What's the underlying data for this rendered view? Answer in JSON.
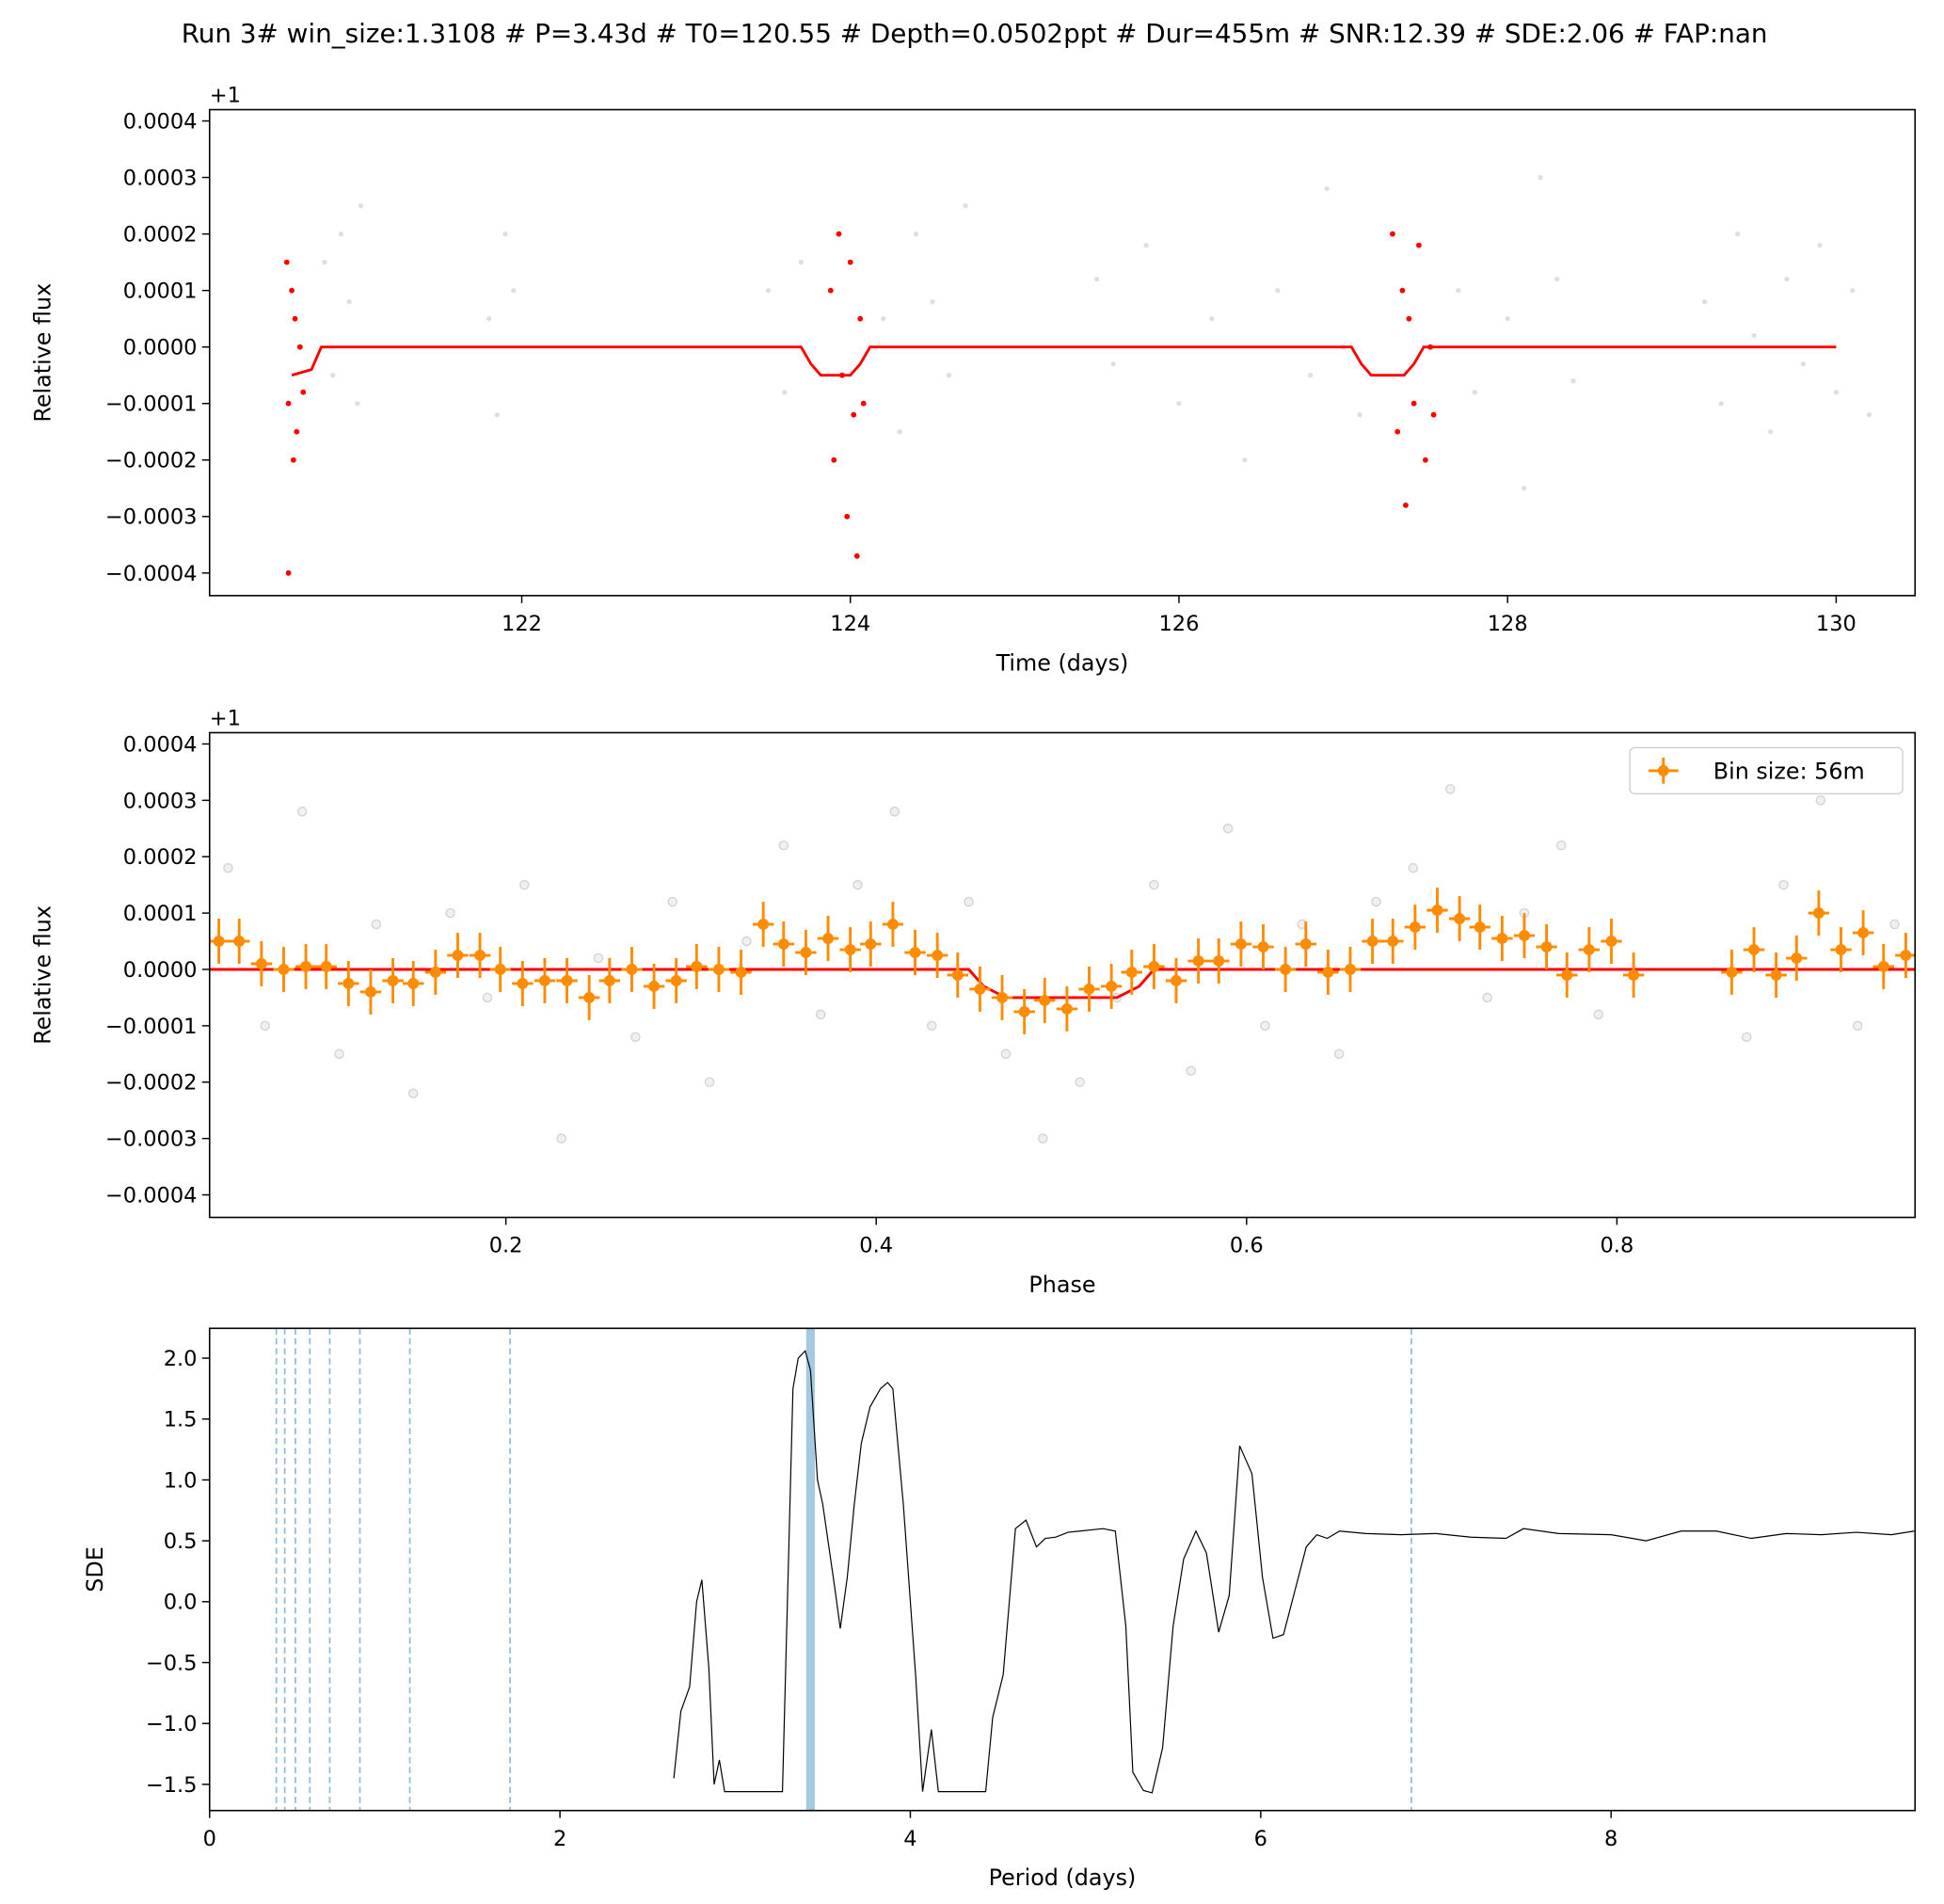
{
  "title": "Run 3# win_size:1.3108 # P=3.43d # T0=120.55 # Depth=0.0502ppt # Dur=455m # SNR:12.39 # SDE:2.06 # FAP:nan",
  "chart_data": [
    {
      "type": "scatter",
      "xlabel": "Time (days)",
      "ylabel": "Relative flux",
      "offset_label": "+1",
      "xlim": [
        120.1,
        130.48
      ],
      "ylim": [
        -0.00044,
        0.00042
      ],
      "xticks": [
        122,
        124,
        126,
        128,
        130
      ],
      "yticks": [
        {
          "value": -0.0004,
          "label": "−0.0004"
        },
        {
          "value": -0.0003,
          "label": "−0.0003"
        },
        {
          "value": -0.0002,
          "label": "−0.0002"
        },
        {
          "value": -0.0001,
          "label": "−0.0001"
        },
        {
          "value": 0,
          "label": "0.0000"
        },
        {
          "value": 0.0001,
          "label": "0.0001"
        },
        {
          "value": 0.0002,
          "label": "0.0002"
        },
        {
          "value": 0.0003,
          "label": "0.0003"
        },
        {
          "value": 0.0004,
          "label": "0.0004"
        }
      ],
      "series": [
        {
          "type": "scatter",
          "color": "#808080",
          "alpha": 0.25,
          "x": [
            120.8,
            120.85,
            120.9,
            120.95,
            121.0,
            121.02,
            121.8,
            121.85,
            121.9,
            121.95,
            123.5,
            123.6,
            123.7,
            124.2,
            124.3,
            124.4,
            124.5,
            124.6,
            124.7,
            125.5,
            125.6,
            125.8,
            126.0,
            126.2,
            126.4,
            126.6,
            126.8,
            126.9,
            127.0,
            127.1,
            127.7,
            127.8,
            128.0,
            128.1,
            128.2,
            128.3,
            128.4,
            129.2,
            129.3,
            129.4,
            129.5,
            129.6,
            129.7,
            129.8,
            129.9,
            130.0,
            130.1,
            130.2
          ],
          "values": [
            0.00015,
            -5e-05,
            0.0002,
            8e-05,
            -0.0001,
            0.00025,
            5e-05,
            -0.00012,
            0.0002,
            0.0001,
            0.0001,
            -8e-05,
            0.00015,
            5e-05,
            -0.00015,
            0.0002,
            8e-05,
            -5e-05,
            0.00025,
            0.00012,
            -3e-05,
            0.00018,
            -0.0001,
            5e-05,
            -0.0002,
            0.0001,
            -5e-05,
            0.00028,
            0,
            -0.00012,
            0.0001,
            -8e-05,
            5e-05,
            -0.00025,
            0.0003,
            0.00012,
            -6e-05,
            8e-05,
            -0.0001,
            0.0002,
            2e-05,
            -0.00015,
            0.00012,
            -3e-05,
            0.00018,
            -8e-05,
            0.0001,
            -0.00012
          ]
        },
        {
          "type": "scatter",
          "color": "#ff0000",
          "alpha": 1,
          "x": [
            120.57,
            120.58,
            120.6,
            120.61,
            120.62,
            120.63,
            120.58,
            120.65,
            120.67,
            123.88,
            123.9,
            123.93,
            123.95,
            123.98,
            124.0,
            124.02,
            124.04,
            124.06,
            124.08,
            127.3,
            127.33,
            127.36,
            127.38,
            127.4,
            127.43,
            127.46,
            127.5,
            127.53,
            127.55
          ],
          "values": [
            0.00015,
            -0.0001,
            0.0001,
            -0.0002,
            5e-05,
            -0.00015,
            -0.0004,
            0,
            -8e-05,
            0.0001,
            -0.0002,
            0.0002,
            -5e-05,
            -0.0003,
            0.00015,
            -0.00012,
            -0.00037,
            5e-05,
            -0.0001,
            0.0002,
            -0.00015,
            0.0001,
            -0.00028,
            5e-05,
            -0.0001,
            0.00018,
            -0.0002,
            0,
            -0.00012
          ]
        },
        {
          "type": "line",
          "color": "#ff0000",
          "x": [
            120.6,
            120.72,
            120.78,
            123.7,
            123.76,
            123.82,
            124.0,
            124.06,
            124.12,
            127.05,
            127.11,
            127.17,
            127.37,
            127.43,
            127.49,
            130.0
          ],
          "values": [
            -5e-05,
            -4e-05,
            0,
            0,
            -3e-05,
            -5e-05,
            -5e-05,
            -3e-05,
            0,
            0,
            -3e-05,
            -5e-05,
            -5e-05,
            -3e-05,
            0,
            0
          ]
        }
      ]
    },
    {
      "type": "scatter",
      "xlabel": "Phase",
      "ylabel": "Relative flux",
      "offset_label": "+1",
      "legend": "upper right",
      "xlim": [
        0.04,
        0.961
      ],
      "ylim": [
        -0.00044,
        0.00042
      ],
      "xticks": [
        0.2,
        0.4,
        0.6,
        0.8
      ],
      "yticks": [
        {
          "value": -0.0004,
          "label": "−0.0004"
        },
        {
          "value": -0.0003,
          "label": "−0.0003"
        },
        {
          "value": -0.0002,
          "label": "−0.0002"
        },
        {
          "value": -0.0001,
          "label": "−0.0001"
        },
        {
          "value": 0,
          "label": "0.0000"
        },
        {
          "value": 0.0001,
          "label": "0.0001"
        },
        {
          "value": 0.0002,
          "label": "0.0002"
        },
        {
          "value": 0.0003,
          "label": "0.0003"
        },
        {
          "value": 0.0004,
          "label": "0.0004"
        }
      ],
      "series": [
        {
          "type": "scatter",
          "color": "#808080",
          "alpha": 0.3,
          "x": [
            0.05,
            0.07,
            0.09,
            0.11,
            0.13,
            0.15,
            0.17,
            0.19,
            0.21,
            0.23,
            0.25,
            0.27,
            0.29,
            0.31,
            0.33,
            0.35,
            0.37,
            0.39,
            0.41,
            0.43,
            0.45,
            0.47,
            0.49,
            0.51,
            0.53,
            0.55,
            0.57,
            0.59,
            0.61,
            0.63,
            0.65,
            0.67,
            0.69,
            0.71,
            0.73,
            0.75,
            0.77,
            0.79,
            0.87,
            0.89,
            0.91,
            0.93,
            0.95
          ],
          "values": [
            0.00018,
            -0.0001,
            0.00028,
            -0.00015,
            8e-05,
            -0.00022,
            0.0001,
            -5e-05,
            0.00015,
            -0.0003,
            2e-05,
            -0.00012,
            0.00012,
            -0.0002,
            5e-05,
            0.00022,
            -8e-05,
            0.00015,
            0.00028,
            -0.0001,
            0.00012,
            -0.00015,
            -0.0003,
            -0.0002,
            -5e-05,
            0.00015,
            -0.00018,
            0.00025,
            -0.0001,
            8e-05,
            -0.00015,
            0.00012,
            0.00018,
            0.00032,
            -5e-05,
            0.0001,
            0.00022,
            -8e-05,
            -0.00012,
            0.00015,
            0.0003,
            -0.0001,
            8e-05
          ]
        },
        {
          "type": "line",
          "color": "#ff0000",
          "x": [
            0.04,
            0.45,
            0.458,
            0.47,
            0.53,
            0.542,
            0.55,
            0.961
          ],
          "values": [
            0,
            0,
            -3e-05,
            -5e-05,
            -5e-05,
            -3e-05,
            0,
            0
          ]
        },
        {
          "type": "errorbar",
          "name": "Bin size: 56m",
          "color": "#ff8c00",
          "error": 4e-05,
          "xerr": 0.0057,
          "x": [
            0.045,
            0.056,
            0.068,
            0.08,
            0.092,
            0.103,
            0.115,
            0.127,
            0.139,
            0.15,
            0.162,
            0.174,
            0.186,
            0.197,
            0.209,
            0.221,
            0.233,
            0.245,
            0.256,
            0.268,
            0.28,
            0.292,
            0.303,
            0.315,
            0.327,
            0.339,
            0.35,
            0.362,
            0.374,
            0.386,
            0.397,
            0.409,
            0.421,
            0.433,
            0.444,
            0.456,
            0.468,
            0.48,
            0.491,
            0.503,
            0.515,
            0.527,
            0.538,
            0.55,
            0.562,
            0.574,
            0.585,
            0.597,
            0.609,
            0.621,
            0.632,
            0.644,
            0.656,
            0.668,
            0.679,
            0.691,
            0.703,
            0.715,
            0.726,
            0.738,
            0.75,
            0.762,
            0.773,
            0.785,
            0.797,
            0.809,
            0.862,
            0.874,
            0.886,
            0.897,
            0.909,
            0.921,
            0.933,
            0.944,
            0.956
          ],
          "values": [
            5e-05,
            5e-05,
            1e-05,
            0,
            5e-06,
            5e-06,
            -2.5e-05,
            -4e-05,
            -2e-05,
            -2.5e-05,
            -5e-06,
            2.5e-05,
            2.5e-05,
            0,
            -2.5e-05,
            -2e-05,
            -2e-05,
            -5e-05,
            -2e-05,
            0,
            -3e-05,
            -2e-05,
            5e-06,
            0,
            -5e-06,
            8e-05,
            4.5e-05,
            3e-05,
            5.5e-05,
            3.5e-05,
            4.5e-05,
            8e-05,
            3e-05,
            2.5e-05,
            -1e-05,
            -3.5e-05,
            -5e-05,
            -7.5e-05,
            -5.5e-05,
            -7e-05,
            -3.5e-05,
            -3e-05,
            -5e-06,
            5e-06,
            -2e-05,
            1.5e-05,
            1.5e-05,
            4.5e-05,
            4e-05,
            0,
            4.5e-05,
            -5e-06,
            0,
            5e-05,
            5e-05,
            7.5e-05,
            0.000105,
            9e-05,
            7.5e-05,
            5.5e-05,
            6e-05,
            4e-05,
            -1e-05,
            3.5e-05,
            5e-05,
            -1e-05,
            -5e-06,
            3.5e-05,
            -1e-05,
            2e-05,
            0.0001,
            3.5e-05,
            6.5e-05,
            5e-06,
            2.5e-05
          ]
        }
      ]
    },
    {
      "type": "line",
      "xlabel": "Period (days)",
      "ylabel": "SDE",
      "xlim": [
        0,
        9.735
      ],
      "ylim": [
        -1.715,
        2.245
      ],
      "xticks": [
        0,
        2,
        4,
        6,
        8
      ],
      "yticks": [
        {
          "value": -1.5,
          "label": "−1.5"
        },
        {
          "value": -1.0,
          "label": "−1.0"
        },
        {
          "value": -0.5,
          "label": "−0.5"
        },
        {
          "value": 0,
          "label": "0.0"
        },
        {
          "value": 0.5,
          "label": "0.5"
        },
        {
          "value": 1.0,
          "label": "1.0"
        },
        {
          "value": 1.5,
          "label": "1.5"
        },
        {
          "value": 2.0,
          "label": "2.0"
        }
      ],
      "vlines": [
        0.381,
        0.429,
        0.49,
        0.572,
        0.686,
        0.858,
        1.143,
        1.715,
        6.86
      ],
      "vline_color": "#1f77b4",
      "highlight": 3.43,
      "series": [
        {
          "type": "line",
          "color": "#000000",
          "x": [
            2.65,
            2.69,
            2.74,
            2.78,
            2.81,
            2.85,
            2.88,
            2.91,
            2.94,
            3.27,
            3.33,
            3.36,
            3.4,
            3.43,
            3.47,
            3.5,
            3.57,
            3.6,
            3.64,
            3.68,
            3.72,
            3.77,
            3.83,
            3.87,
            3.9,
            3.96,
            4.03,
            4.07,
            4.12,
            4.16,
            4.43,
            4.47,
            4.53,
            4.6,
            4.66,
            4.72,
            4.77,
            4.83,
            4.9,
            5.1,
            5.17,
            5.23,
            5.27,
            5.33,
            5.38,
            5.44,
            5.5,
            5.56,
            5.63,
            5.69,
            5.76,
            5.82,
            5.88,
            5.95,
            6.01,
            6.07,
            6.13,
            6.26,
            6.32,
            6.38,
            6.45,
            6.6,
            6.8,
            7.0,
            7.2,
            7.4,
            7.5,
            7.7,
            8.0,
            8.2,
            8.4,
            8.6,
            8.8,
            9.0,
            9.2,
            9.4,
            9.6,
            9.73
          ],
          "values": [
            -1.45,
            -0.9,
            -0.7,
            0.0,
            0.18,
            -0.55,
            -1.5,
            -1.3,
            -1.56,
            -1.56,
            1.75,
            2.0,
            2.06,
            1.9,
            1.0,
            0.8,
            0.1,
            -0.22,
            0.2,
            0.8,
            1.3,
            1.6,
            1.75,
            1.8,
            1.75,
            0.8,
            -0.6,
            -1.56,
            -1.05,
            -1.56,
            -1.56,
            -0.95,
            -0.6,
            0.6,
            0.67,
            0.45,
            0.52,
            0.53,
            0.57,
            0.6,
            0.58,
            -0.2,
            -1.4,
            -1.55,
            -1.57,
            -1.2,
            -0.2,
            0.35,
            0.58,
            0.4,
            -0.25,
            0.05,
            1.28,
            1.05,
            0.2,
            -0.3,
            -0.27,
            0.45,
            0.55,
            0.52,
            0.58,
            0.56,
            0.55,
            0.56,
            0.53,
            0.52,
            0.6,
            0.56,
            0.55,
            0.5,
            0.58,
            0.58,
            0.52,
            0.56,
            0.55,
            0.57,
            0.55,
            0.58
          ]
        }
      ]
    }
  ]
}
